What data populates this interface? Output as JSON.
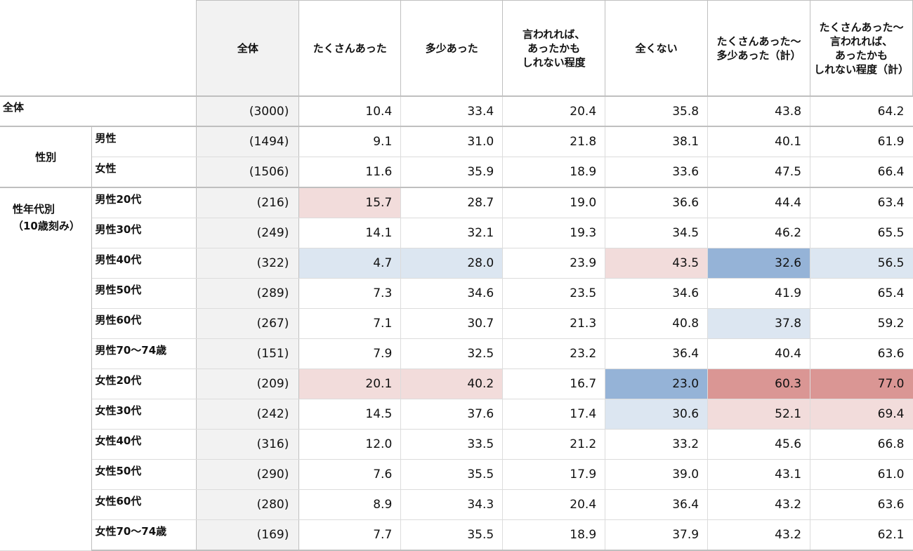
{
  "chart_data": {
    "type": "table",
    "columns": [
      "全体",
      "たくさんあった",
      "多少あった",
      "言われれば、あったかもしれない程度",
      "全くない",
      "たくさんあった～多少あった（計）",
      "たくさんあった～言われれば、あったかもしれない程度（計）"
    ],
    "header_lines": [
      [
        "全体"
      ],
      [
        "たくさんあった"
      ],
      [
        "多少あった"
      ],
      [
        "言われれば、",
        "あったかも",
        "しれない程度"
      ],
      [
        "全くない"
      ],
      [
        "たくさんあった～",
        "多少あった（計）"
      ],
      [
        "たくさんあった～",
        "言われれば、",
        "あったかも",
        "しれない程度（計）"
      ]
    ],
    "groups": [
      {
        "label": "全体",
        "label_lines": [
          "全体"
        ],
        "style": "top",
        "rows": [
          {
            "label": "",
            "n": "(3000)",
            "values": [
              "10.4",
              "33.4",
              "20.4",
              "35.8",
              "43.8",
              "64.2"
            ],
            "highlights": [
              "",
              "",
              "",
              "",
              "",
              ""
            ]
          }
        ]
      },
      {
        "label": "性別",
        "label_lines": [
          "性別"
        ],
        "style": "center",
        "rows": [
          {
            "label": "男性",
            "n": "(1494)",
            "values": [
              "9.1",
              "31.0",
              "21.8",
              "38.1",
              "40.1",
              "61.9"
            ],
            "highlights": [
              "",
              "",
              "",
              "",
              "",
              ""
            ]
          },
          {
            "label": "女性",
            "n": "(1506)",
            "values": [
              "11.6",
              "35.9",
              "18.9",
              "33.6",
              "47.5",
              "66.4"
            ],
            "highlights": [
              "",
              "",
              "",
              "",
              "",
              ""
            ]
          }
        ]
      },
      {
        "label": "性年代別（10歳刻み）",
        "label_lines": [
          "性年代別",
          "（10歳刻み）"
        ],
        "style": "multi",
        "rows": [
          {
            "label": "男性20代",
            "n": "(216)",
            "values": [
              "15.7",
              "28.7",
              "19.0",
              "36.6",
              "44.4",
              "63.4"
            ],
            "highlights": [
              "pink",
              "",
              "",
              "",
              "",
              ""
            ]
          },
          {
            "label": "男性30代",
            "n": "(249)",
            "values": [
              "14.1",
              "32.1",
              "19.3",
              "34.5",
              "46.2",
              "65.5"
            ],
            "highlights": [
              "",
              "",
              "",
              "",
              "",
              ""
            ]
          },
          {
            "label": "男性40代",
            "n": "(322)",
            "values": [
              "4.7",
              "28.0",
              "23.9",
              "43.5",
              "32.6",
              "56.5"
            ],
            "highlights": [
              "lblue",
              "lblue",
              "",
              "pink",
              "blue",
              "lblue"
            ]
          },
          {
            "label": "男性50代",
            "n": "(289)",
            "values": [
              "7.3",
              "34.6",
              "23.5",
              "34.6",
              "41.9",
              "65.4"
            ],
            "highlights": [
              "",
              "",
              "",
              "",
              "",
              ""
            ]
          },
          {
            "label": "男性60代",
            "n": "(267)",
            "values": [
              "7.1",
              "30.7",
              "21.3",
              "40.8",
              "37.8",
              "59.2"
            ],
            "highlights": [
              "",
              "",
              "",
              "",
              "lblue",
              ""
            ]
          },
          {
            "label": "男性70～74歳",
            "n": "(151)",
            "values": [
              "7.9",
              "32.5",
              "23.2",
              "36.4",
              "40.4",
              "63.6"
            ],
            "highlights": [
              "",
              "",
              "",
              "",
              "",
              ""
            ]
          },
          {
            "label": "女性20代",
            "n": "(209)",
            "values": [
              "20.1",
              "40.2",
              "16.7",
              "23.0",
              "60.3",
              "77.0"
            ],
            "highlights": [
              "pink",
              "pink",
              "",
              "blue",
              "red",
              "red"
            ]
          },
          {
            "label": "女性30代",
            "n": "(242)",
            "values": [
              "14.5",
              "37.6",
              "17.4",
              "30.6",
              "52.1",
              "69.4"
            ],
            "highlights": [
              "",
              "",
              "",
              "lblue",
              "pink",
              "pink"
            ]
          },
          {
            "label": "女性40代",
            "n": "(316)",
            "values": [
              "12.0",
              "33.5",
              "21.2",
              "33.2",
              "45.6",
              "66.8"
            ],
            "highlights": [
              "",
              "",
              "",
              "",
              "",
              ""
            ]
          },
          {
            "label": "女性50代",
            "n": "(290)",
            "values": [
              "7.6",
              "35.5",
              "17.9",
              "39.0",
              "43.1",
              "61.0"
            ],
            "highlights": [
              "",
              "",
              "",
              "",
              "",
              ""
            ]
          },
          {
            "label": "女性60代",
            "n": "(280)",
            "values": [
              "8.9",
              "34.3",
              "20.4",
              "36.4",
              "43.2",
              "63.6"
            ],
            "highlights": [
              "",
              "",
              "",
              "",
              "",
              ""
            ]
          },
          {
            "label": "女性70～74歳",
            "n": "(169)",
            "values": [
              "7.7",
              "35.5",
              "18.9",
              "37.9",
              "43.2",
              "62.1"
            ],
            "highlights": [
              "",
              "",
              "",
              "",
              "",
              ""
            ]
          }
        ]
      }
    ],
    "highlight_colors": {
      "pink": "#f2dcdb",
      "red": "#da9694",
      "lblue": "#dce6f1",
      "blue": "#95b3d7"
    }
  }
}
